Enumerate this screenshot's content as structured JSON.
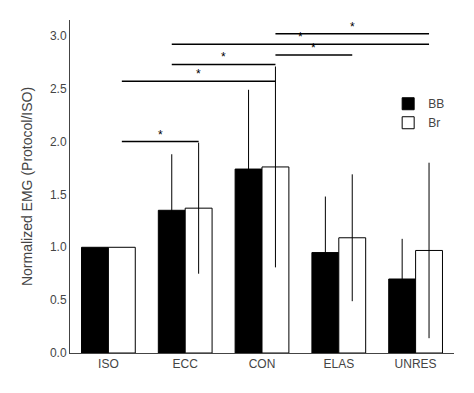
{
  "chart_data": {
    "type": "bar",
    "categories": [
      "ISO",
      "ECC",
      "CON",
      "ELAS",
      "UNRES"
    ],
    "ylabel": "Normalized EMG (Protocol/ISO)",
    "ylim": [
      0,
      3.15
    ],
    "yticks": [
      {
        "value": 0,
        "label": "0.0"
      },
      0.5,
      {
        "value": 1.0,
        "label": "1.0"
      },
      1.5,
      {
        "value": 2.0,
        "label": "2.0"
      },
      2.5,
      {
        "value": 3.0,
        "label": "3.0"
      }
    ],
    "grid": false,
    "legend": "upper right",
    "series": [
      {
        "name": "BB",
        "color": "#000000",
        "values": [
          1.0,
          1.35,
          1.74,
          0.95,
          0.7
        ],
        "errors": [
          0.0,
          0.53,
          0.75,
          0.53,
          0.38
        ]
      },
      {
        "name": "Br",
        "color": "#ffffff",
        "values": [
          1.0,
          1.37,
          1.76,
          1.09,
          0.97
        ],
        "errors": [
          0.0,
          0.62,
          0.95,
          0.6,
          0.83
        ]
      }
    ],
    "annotations": [
      {
        "text": "*",
        "y": 2.0,
        "from": "ISO",
        "from_series": "Br",
        "to": "ECC",
        "to_series": "Br"
      },
      {
        "text": "*",
        "y": 2.57,
        "from": "ISO",
        "from_series": "Br",
        "to": "CON",
        "to_series": "Br"
      },
      {
        "text": "*",
        "y": 2.73,
        "from": "ECC",
        "from_series": "BB",
        "to": "CON",
        "to_series": "Br"
      },
      {
        "text": "*",
        "y": 2.82,
        "from": "CON",
        "from_series": "Br",
        "to": "ELAS",
        "to_series": "Br"
      },
      {
        "text": "*",
        "y": 2.92,
        "from": "ECC",
        "from_series": "BB",
        "to": "UNRES",
        "to_series": "Br"
      },
      {
        "text": "*",
        "y": 3.02,
        "from": "CON",
        "from_series": "Br",
        "to": "UNRES",
        "to_series": "Br"
      }
    ]
  }
}
